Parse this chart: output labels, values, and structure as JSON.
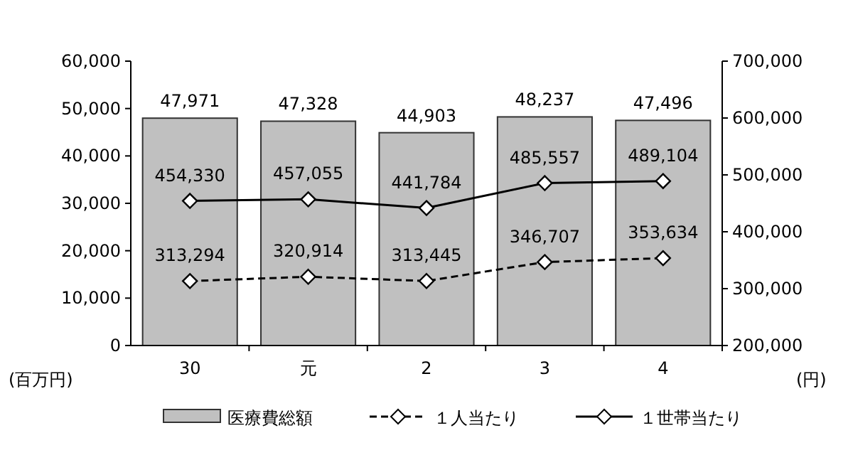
{
  "chart_data": {
    "type": "bar",
    "categories": [
      "30",
      "元",
      "2",
      "3",
      "4"
    ],
    "ylabel": "(百万円)",
    "y2label": "(円)",
    "ylim": [
      0,
      60000
    ],
    "yticks": [
      {
        "value": 0,
        "label": "0"
      },
      {
        "value": 10000,
        "label": "10,000"
      },
      {
        "value": 20000,
        "label": "20,000"
      },
      {
        "value": 30000,
        "label": "30,000"
      },
      {
        "value": 40000,
        "label": "40,000"
      },
      {
        "value": 50000,
        "label": "50,000"
      },
      {
        "value": 60000,
        "label": "60,000"
      }
    ],
    "y2lim": [
      200000,
      700000
    ],
    "y2ticks": [
      {
        "value": 200000,
        "label": "200,000"
      },
      {
        "value": 300000,
        "label": "300,000"
      },
      {
        "value": 400000,
        "label": "400,000"
      },
      {
        "value": 500000,
        "label": "500,000"
      },
      {
        "value": 600000,
        "label": "600,000"
      },
      {
        "value": 700000,
        "label": "700,000"
      }
    ],
    "legend": "bottom",
    "grid": false,
    "series": [
      {
        "name": "医療費総額",
        "color": "#c0c0c0",
        "values": [
          47971,
          47328,
          44903,
          48237,
          47496
        ],
        "value_labels": [
          "47,971",
          "47,328",
          "44,903",
          "48,237",
          "47,496"
        ]
      },
      {
        "name": "１人当たり",
        "type": "line",
        "axis": "y2",
        "color": "#000000",
        "line_style": "dashed",
        "marker": "diamond",
        "values": [
          313294,
          320914,
          313445,
          346707,
          353634
        ],
        "value_labels": [
          "313,294",
          "320,914",
          "313,445",
          "346,707",
          "353,634"
        ]
      },
      {
        "name": "１世帯当たり",
        "type": "line",
        "axis": "y2",
        "color": "#000000",
        "line_style": "solid",
        "marker": "diamond",
        "values": [
          454330,
          457055,
          441784,
          485557,
          489104
        ],
        "value_labels": [
          "454,330",
          "457,055",
          "441,784",
          "485,557",
          "489,104"
        ]
      }
    ]
  }
}
